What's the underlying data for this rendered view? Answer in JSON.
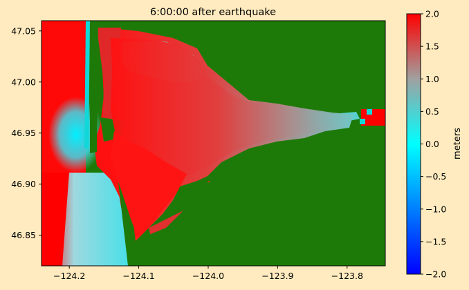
{
  "chart_data": [
    {
      "type": "heatmap",
      "title": "6:00:00 after earthquake",
      "xlabel": "",
      "ylabel": "",
      "xlim": [
        -124.24,
        -123.745
      ],
      "ylim": [
        46.82,
        47.06
      ],
      "x_ticks": [
        {
          "value": -124.2,
          "label": "−124.2"
        },
        {
          "value": -124.1,
          "label": "−124.1"
        },
        {
          "value": -124.0,
          "label": "−124.0"
        },
        {
          "value": -123.9,
          "label": "−123.9"
        },
        {
          "value": -123.8,
          "label": "−123.8"
        }
      ],
      "y_ticks": [
        {
          "value": 46.85,
          "label": "46.85"
        },
        {
          "value": 46.9,
          "label": "46.90"
        },
        {
          "value": 46.95,
          "label": "46.95"
        },
        {
          "value": 47.0,
          "label": "47.00"
        },
        {
          "value": 47.05,
          "label": "47.05"
        }
      ],
      "land_color": "#1E7A08",
      "ocean_far_color": "#FF0000",
      "near_shore_color": "#00FFFF",
      "bay_color": "#A08A8A"
    },
    {
      "type": "colorbar",
      "label": "meters",
      "range": [
        -2.0,
        2.0
      ],
      "stops": [
        {
          "value": -2.0,
          "color": "#0000FF"
        },
        {
          "value": 0.0,
          "color": "#00FFFF"
        },
        {
          "value": 1.0,
          "color": "#A0A0A0"
        },
        {
          "value": 2.0,
          "color": "#FF0000"
        }
      ],
      "ticks": [
        {
          "value": 2.0,
          "label": "2.0"
        },
        {
          "value": 1.5,
          "label": "1.5"
        },
        {
          "value": 1.0,
          "label": "1.0"
        },
        {
          "value": 0.5,
          "label": "0.5"
        },
        {
          "value": 0.0,
          "label": "0.0"
        },
        {
          "value": -0.5,
          "label": "−0.5"
        },
        {
          "value": -1.0,
          "label": "−1.0"
        },
        {
          "value": -1.5,
          "label": "−1.5"
        },
        {
          "value": -2.0,
          "label": "−2.0"
        }
      ]
    }
  ]
}
